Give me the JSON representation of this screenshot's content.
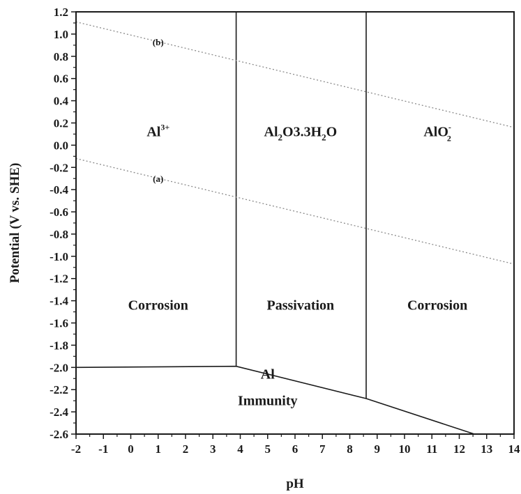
{
  "chart_data": {
    "type": "line",
    "title": "",
    "xlabel": "pH",
    "ylabel": "Potential (V vs. SHE)",
    "xlim": [
      -2,
      14
    ],
    "ylim": [
      -2.6,
      1.2
    ],
    "x_ticks": [
      -2,
      -1,
      0,
      1,
      2,
      3,
      4,
      5,
      6,
      7,
      8,
      9,
      10,
      11,
      12,
      13,
      14
    ],
    "x_tick_labels": [
      "-2",
      "-1",
      "0",
      "1",
      "2",
      "3",
      "4",
      "5",
      "6",
      "7",
      "8",
      "9",
      "10",
      "11",
      "12",
      "13",
      "14"
    ],
    "y_ticks": [
      -2.6,
      -2.4,
      -2.2,
      -2.0,
      -1.8,
      -1.6,
      -1.4,
      -1.2,
      -1.0,
      -0.8,
      -0.6,
      -0.4,
      -0.2,
      0.0,
      0.2,
      0.4,
      0.6,
      0.8,
      1.0,
      1.2
    ],
    "y_tick_labels": [
      "-2.6",
      "-2.4",
      "-2.2",
      "-2.0",
      "-1.8",
      "-1.6",
      "-1.4",
      "-1.2",
      "-1.0",
      "-0.8",
      "-0.6",
      "-0.4",
      "-0.2",
      "0.0",
      "0.2",
      "0.4",
      "0.6",
      "0.8",
      "1.0",
      "1.2"
    ],
    "grid": false,
    "boundaries": [
      {
        "id": "al-solid-aqueous",
        "style": "solid",
        "points": [
          [
            -2,
            -2.0
          ],
          [
            3.85,
            -1.99
          ],
          [
            8.6,
            -2.28
          ],
          [
            12.55,
            -2.6
          ]
        ]
      },
      {
        "id": "al3-oxide",
        "style": "solid",
        "points": [
          [
            3.85,
            1.2
          ],
          [
            3.85,
            -1.99
          ]
        ]
      },
      {
        "id": "oxide-alo2",
        "style": "solid",
        "points": [
          [
            8.6,
            1.2
          ],
          [
            8.6,
            -2.28
          ]
        ]
      }
    ],
    "series": [
      {
        "name": "(a)",
        "style": "dotted",
        "x": [
          -2,
          14
        ],
        "y": [
          -0.12,
          -1.07
        ]
      },
      {
        "name": "(b)",
        "style": "dotted",
        "x": [
          -2,
          14
        ],
        "y": [
          1.11,
          0.16
        ]
      }
    ],
    "annotations": {
      "species": [
        {
          "id": "al3",
          "base": "Al",
          "sup": "3+",
          "x": 1.0,
          "y": 0.08
        },
        {
          "id": "oxide",
          "parts": [
            "Al",
            "2",
            "O",
            "3",
            ".3H",
            "2",
            "O"
          ],
          "x": 6.2,
          "y": 0.08
        },
        {
          "id": "alo2",
          "base": "AlO",
          "sup": "-",
          "sub": "2",
          "x": 11.2,
          "y": 0.08
        }
      ],
      "regions": [
        {
          "id": "corrosion-left",
          "text": "Corrosion",
          "x": 1.0,
          "y": -1.48
        },
        {
          "id": "passivation",
          "text": "Passivation",
          "x": 6.2,
          "y": -1.48
        },
        {
          "id": "corrosion-right",
          "text": "Corrosion",
          "x": 11.2,
          "y": -1.48
        },
        {
          "id": "al",
          "text": "Al",
          "x": 5.0,
          "y": -2.1
        },
        {
          "id": "immunity",
          "text": "Immunity",
          "x": 5.0,
          "y": -2.34
        }
      ]
    }
  }
}
